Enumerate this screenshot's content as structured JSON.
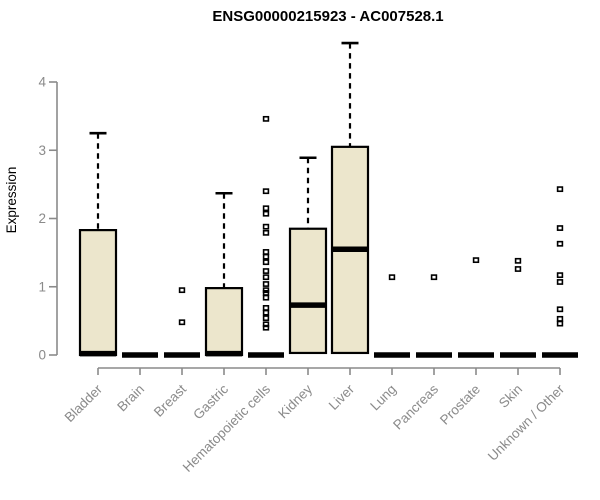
{
  "chart_data": {
    "type": "boxplot",
    "title": "ENSG00000215923 - AC007528.1",
    "ylabel": "Expression",
    "xlabel": "",
    "ylim": [
      0,
      4.6
    ],
    "yticks": [
      0,
      1,
      2,
      3,
      4
    ],
    "grid": false,
    "legend": "none",
    "colors": {
      "box_fill": "#ECE6CC",
      "box_border": "#000000",
      "median": "#000000",
      "whisker": "#000000",
      "outlier": "#000000",
      "axis": "#8A8A8A",
      "tick_text": "#8A8A8A",
      "title_text": "#000000",
      "background": "#FFFFFF"
    },
    "categories": [
      "Bladder",
      "Brain",
      "Breast",
      "Gastric",
      "Hematopoietic cells",
      "Kidney",
      "Liver",
      "Lung",
      "Pancreas",
      "Prostate",
      "Skin",
      "Unknown / Other"
    ],
    "series": [
      {
        "category": "Bladder",
        "q1": 0,
        "median": 0.02,
        "q3": 1.83,
        "whisker_low": 0,
        "whisker_high": 3.25,
        "outliers": []
      },
      {
        "category": "Brain",
        "q1": 0,
        "median": 0,
        "q3": 0,
        "whisker_low": 0,
        "whisker_high": 0,
        "outliers": []
      },
      {
        "category": "Breast",
        "q1": 0,
        "median": 0,
        "q3": 0,
        "whisker_low": 0,
        "whisker_high": 0,
        "outliers": [
          0.95,
          0.48
        ]
      },
      {
        "category": "Gastric",
        "q1": 0,
        "median": 0.02,
        "q3": 0.98,
        "whisker_low": 0,
        "whisker_high": 2.37,
        "outliers": []
      },
      {
        "category": "Hematopoietic cells",
        "q1": 0,
        "median": 0,
        "q3": 0,
        "whisker_low": 0,
        "whisker_high": 0,
        "outliers": [
          3.46,
          2.4,
          2.15,
          2.07,
          1.88,
          1.79,
          1.51,
          1.44,
          1.36,
          1.23,
          1.14,
          1.04,
          0.95,
          0.91,
          0.84,
          0.69,
          0.62,
          0.54,
          0.45,
          0.4
        ]
      },
      {
        "category": "Kidney",
        "q1": 0.03,
        "median": 0.73,
        "q3": 1.85,
        "whisker_low": 0.03,
        "whisker_high": 2.89,
        "outliers": []
      },
      {
        "category": "Liver",
        "q1": 0.03,
        "median": 1.55,
        "q3": 3.05,
        "whisker_low": 0.03,
        "whisker_high": 4.57,
        "outliers": []
      },
      {
        "category": "Lung",
        "q1": 0,
        "median": 0,
        "q3": 0,
        "whisker_low": 0,
        "whisker_high": 0,
        "outliers": [
          1.14
        ]
      },
      {
        "category": "Pancreas",
        "q1": 0,
        "median": 0,
        "q3": 0,
        "whisker_low": 0,
        "whisker_high": 0,
        "outliers": [
          1.14
        ]
      },
      {
        "category": "Prostate",
        "q1": 0,
        "median": 0,
        "q3": 0,
        "whisker_low": 0,
        "whisker_high": 0,
        "outliers": [
          1.39
        ]
      },
      {
        "category": "Skin",
        "q1": 0,
        "median": 0,
        "q3": 0,
        "whisker_low": 0,
        "whisker_high": 0,
        "outliers": [
          1.38,
          1.26
        ]
      },
      {
        "category": "Unknown / Other",
        "q1": 0,
        "median": 0,
        "q3": 0,
        "whisker_low": 0,
        "whisker_high": 0,
        "outliers": [
          2.43,
          1.86,
          1.63,
          1.17,
          1.07,
          0.67,
          0.53,
          0.46
        ]
      }
    ]
  }
}
